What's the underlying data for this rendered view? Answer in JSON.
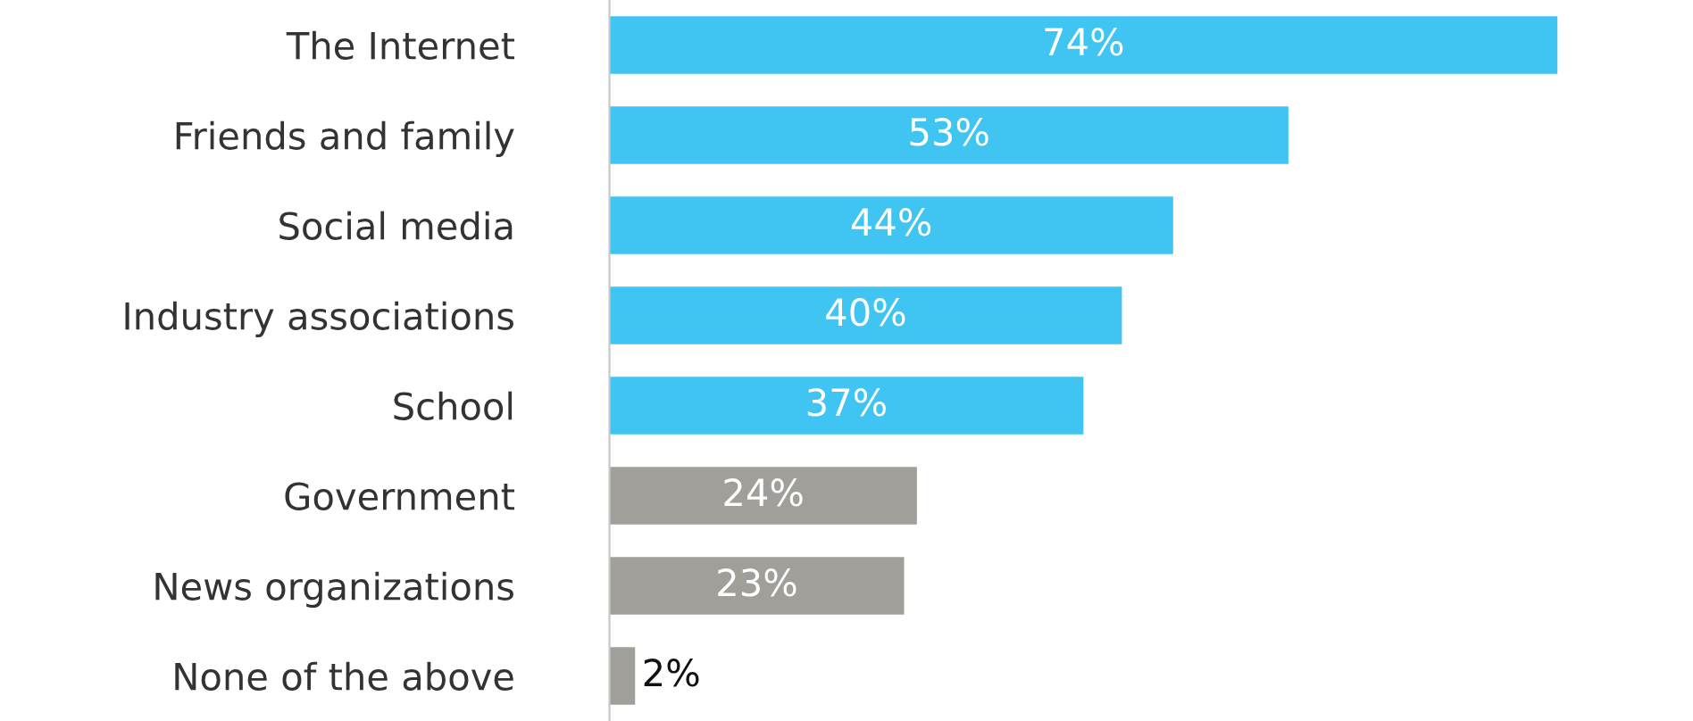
{
  "chart_data": {
    "type": "bar",
    "orientation": "horizontal",
    "categories": [
      "The Internet",
      "Friends and family",
      "Social media",
      "Industry associations",
      "School",
      "Government",
      "News organizations",
      "None of the above"
    ],
    "values": [
      74,
      53,
      44,
      40,
      37,
      24,
      23,
      2
    ],
    "colors": [
      "#40c4f2",
      "#40c4f2",
      "#40c4f2",
      "#40c4f2",
      "#40c4f2",
      "#a09f9a",
      "#a09f9a",
      "#a09f9a"
    ],
    "value_labels": [
      "74%",
      "53%",
      "44%",
      "40%",
      "37%",
      "24%",
      "23%",
      "2%"
    ],
    "grid": false,
    "legend": false
  }
}
